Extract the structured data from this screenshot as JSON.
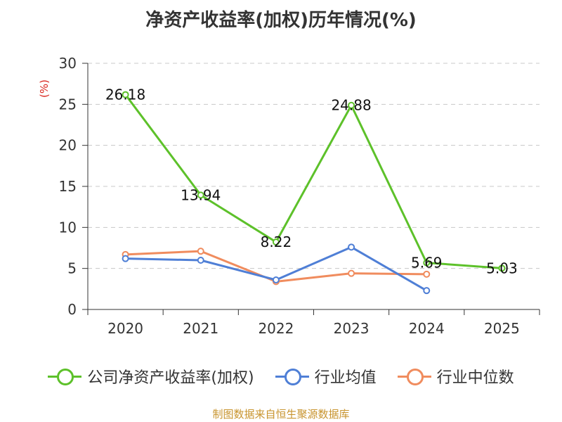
{
  "title": "净资产收益率(加权)历年情况(%)",
  "source": "制图数据来自恒生聚源数据库",
  "colors": {
    "roe": "#5dc12a",
    "industry_avg": "#4f7fd6",
    "industry_median": "#f08c5e",
    "unit": "#d9251d"
  },
  "chart_data": {
    "type": "line",
    "title": "净资产收益率(加权)历年情况(%)",
    "ylabel": "(%)",
    "xlabel": "",
    "categories": [
      "2020",
      "2021",
      "2022",
      "2023",
      "2024",
      "2025"
    ],
    "ylim": [
      0,
      30
    ],
    "yticks": [
      0,
      5,
      10,
      15,
      20,
      25,
      30
    ],
    "grid": true,
    "legend_position": "bottom",
    "series": [
      {
        "name": "公司净资产收益率(加权)",
        "color": "#5dc12a",
        "values": [
          26.18,
          13.94,
          8.22,
          24.88,
          5.69,
          5.03
        ],
        "labels": [
          "26.18",
          "13.94",
          "8.22",
          "24.88",
          "5.69",
          "5.03"
        ]
      },
      {
        "name": "行业均值",
        "color": "#4f7fd6",
        "values": [
          6.2,
          6.0,
          3.6,
          7.6,
          2.3,
          null
        ]
      },
      {
        "name": "行业中位数",
        "color": "#f08c5e",
        "values": [
          6.7,
          7.1,
          3.4,
          4.4,
          4.3,
          null
        ]
      }
    ]
  }
}
